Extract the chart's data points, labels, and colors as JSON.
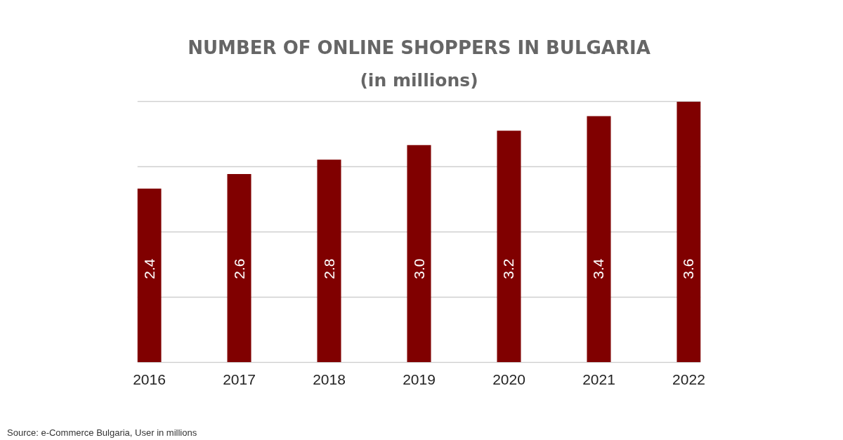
{
  "chart_data": {
    "type": "bar",
    "title": "NUMBER OF ONLINE SHOPPERS IN BULGARIA",
    "subtitle": "(in millions)",
    "categories": [
      "2016",
      "2017",
      "2018",
      "2019",
      "2020",
      "2021",
      "2022"
    ],
    "values": [
      2.4,
      2.6,
      2.8,
      3.0,
      3.2,
      3.4,
      3.6
    ],
    "value_labels": [
      "2.4",
      "2.6",
      "2.8",
      "3.0",
      "3.2",
      "3.4",
      "3.6"
    ],
    "color": "#800000",
    "ylim": [
      0,
      3.6
    ],
    "yticks": [
      {
        "value": 0,
        "label": null
      },
      {
        "value": 0.9,
        "label": null
      },
      {
        "value": 1.8,
        "label": null
      },
      {
        "value": 2.7,
        "label": null
      },
      {
        "value": 3.6,
        "label": null
      }
    ],
    "grid": "y",
    "tick_labels": "x",
    "annotations": [
      "Source: e-Commerce Bulgaria, User in millions"
    ]
  }
}
